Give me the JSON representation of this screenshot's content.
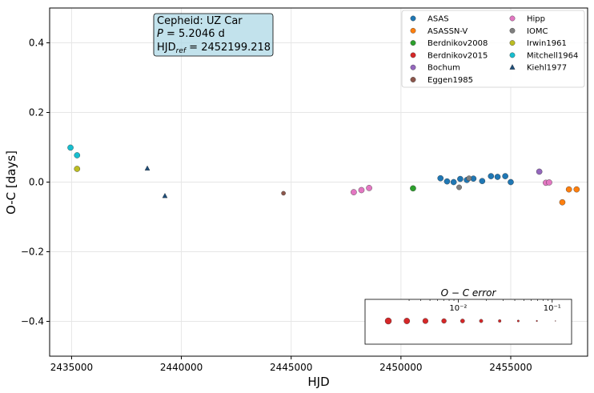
{
  "chart_data": {
    "type": "scatter",
    "xlabel": "HJD",
    "ylabel": "O-C [days]",
    "xlim": [
      2434000,
      2458500
    ],
    "ylim": [
      -0.5,
      0.5
    ],
    "x_ticks": [
      2435000,
      2440000,
      2445000,
      2450000,
      2455000
    ],
    "x_tick_labels": [
      "2435000",
      "2440000",
      "2445000",
      "2450000",
      "2455000"
    ],
    "y_ticks": [
      0.4,
      0.2,
      0.0,
      -0.2,
      -0.4
    ],
    "y_tick_labels": [
      "0.4",
      "0.2",
      "0.0",
      "−0.2",
      "−0.4"
    ],
    "grid": true,
    "legend_position": "top-right",
    "info_box": {
      "line1": "Cepheid: UZ Car",
      "period_symbol": "P",
      "period_value": " = 5.2046 d",
      "hjd_label": "HJD",
      "hjd_subscript": "ref",
      "hjd_value": " = 2452199.218"
    },
    "series": [
      {
        "name": "ASAS",
        "color": "#1f77b4",
        "marker": "circle",
        "size": 3.6,
        "x": [
          2451800,
          2452100,
          2452400,
          2452700,
          2453000,
          2453300,
          2453700,
          2454100,
          2454400,
          2454750,
          2455000
        ],
        "y": [
          0.011,
          0.002,
          0.0,
          0.009,
          0.006,
          0.01,
          0.003,
          0.017,
          0.015,
          0.017,
          0.0
        ]
      },
      {
        "name": "ASASSN-V",
        "color": "#ff7f0e",
        "marker": "circle",
        "size": 3.6,
        "x": [
          2457350,
          2457650,
          2458000
        ],
        "y": [
          -0.058,
          -0.021,
          -0.021
        ]
      },
      {
        "name": "Berdnikov2008",
        "color": "#2ca02c",
        "marker": "circle",
        "size": 3.6,
        "x": [
          2450550
        ],
        "y": [
          -0.018
        ]
      },
      {
        "name": "Berdnikov2015",
        "color": "#d62728",
        "marker": "circle",
        "size": 3.6,
        "x": [],
        "y": []
      },
      {
        "name": "Bochum",
        "color": "#9467bd",
        "marker": "circle",
        "size": 3.6,
        "x": [
          2456300
        ],
        "y": [
          0.03
        ]
      },
      {
        "name": "Eggen1985",
        "color": "#8c564b",
        "marker": "circle",
        "size": 2.6,
        "x": [
          2444650
        ],
        "y": [
          -0.032
        ]
      },
      {
        "name": "Hipp",
        "color": "#e377c2",
        "marker": "circle",
        "size": 3.6,
        "x": [
          2447850,
          2448200,
          2448550,
          2456600,
          2456750
        ],
        "y": [
          -0.029,
          -0.023,
          -0.017,
          -0.002,
          -0.001
        ]
      },
      {
        "name": "IOMC",
        "color": "#7f7f7f",
        "marker": "circle",
        "size": 3.2,
        "x": [
          2452650,
          2453100
        ],
        "y": [
          -0.015,
          0.011
        ]
      },
      {
        "name": "Irwin1961",
        "color": "#bcbd22",
        "marker": "circle",
        "size": 3.6,
        "x": [
          2435250
        ],
        "y": [
          0.038
        ]
      },
      {
        "name": "Mitchell1964",
        "color": "#17becf",
        "marker": "circle",
        "size": 3.6,
        "x": [
          2434950,
          2435250
        ],
        "y": [
          0.099,
          0.077
        ]
      },
      {
        "name": "Kiehl1977",
        "color": "#1f4e79",
        "marker": "triangle",
        "size": 3.0,
        "x": [
          2438450,
          2439250
        ],
        "y": [
          0.039,
          -0.04
        ]
      }
    ],
    "error_legend": {
      "title": "O − C error",
      "ticks": [
        {
          "value": 0.01,
          "label": "10⁻²"
        },
        {
          "value": 0.1,
          "label": "10⁻¹"
        }
      ],
      "sizes": [
        4.0,
        3.7,
        3.4,
        3.0,
        2.6,
        2.2,
        1.8,
        1.3,
        0.9,
        0.5
      ]
    }
  }
}
